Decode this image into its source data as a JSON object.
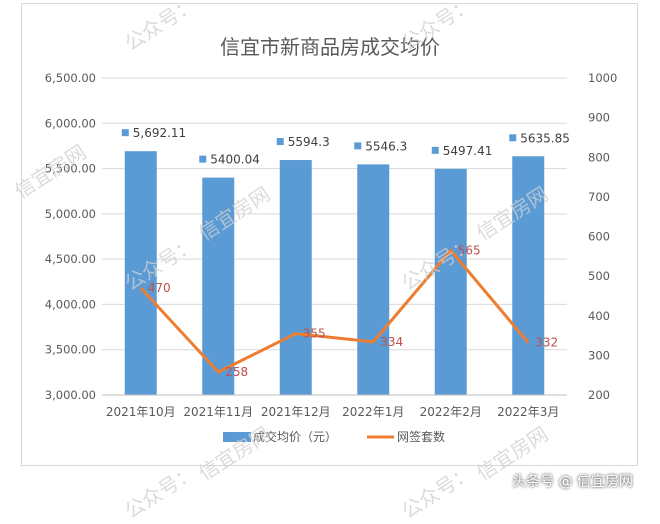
{
  "chart_data": {
    "type": "bar+line",
    "title": "信宜市新商品房成交均价",
    "categories": [
      "2021年10月",
      "2021年11月",
      "2021年12月",
      "2022年1月",
      "2022年2月",
      "2022年3月"
    ],
    "series": [
      {
        "name": "成交均价（元）",
        "type": "bar",
        "axis": "left",
        "color": "#5b9bd5",
        "values": [
          5692.11,
          5400.04,
          5594.3,
          5546.3,
          5497.41,
          5635.85
        ],
        "labels": [
          "5,692.11",
          "5400.04",
          "5594.3",
          "5546.3",
          "5497.41",
          "5635.85"
        ]
      },
      {
        "name": "网签套数",
        "type": "line",
        "axis": "right",
        "color": "#ed7d31",
        "values": [
          470,
          258,
          355,
          334,
          565,
          332
        ],
        "labels": [
          "470",
          "258",
          "355",
          "334",
          "565",
          "332"
        ]
      }
    ],
    "left_axis": {
      "ylim": [
        3000,
        6500
      ],
      "ticks": [
        3000,
        3500,
        4000,
        4500,
        5000,
        5500,
        6000,
        6500
      ],
      "tick_labels": [
        "3,000.00",
        "3,500.00",
        "4,000.00",
        "4,500.00",
        "5,000.00",
        "5,500.00",
        "6,000.00",
        "6,500.00"
      ]
    },
    "right_axis": {
      "ylim": [
        200,
        1000
      ],
      "ticks": [
        200,
        300,
        400,
        500,
        600,
        700,
        800,
        900,
        1000
      ],
      "tick_labels": [
        "200",
        "300",
        "400",
        "500",
        "600",
        "700",
        "800",
        "900",
        "1000"
      ]
    },
    "grid": true,
    "legend": "bottom"
  },
  "watermarks": [
    "公众号：",
    "公众号：",
    "信宜房网",
    "公众号：",
    "信宜房网",
    "公众号：",
    "信宜房网",
    "公众号：",
    "信宜房网",
    "公众号：",
    "信宜房网"
  ],
  "source_credit": "头条号 @ 信宜房网"
}
